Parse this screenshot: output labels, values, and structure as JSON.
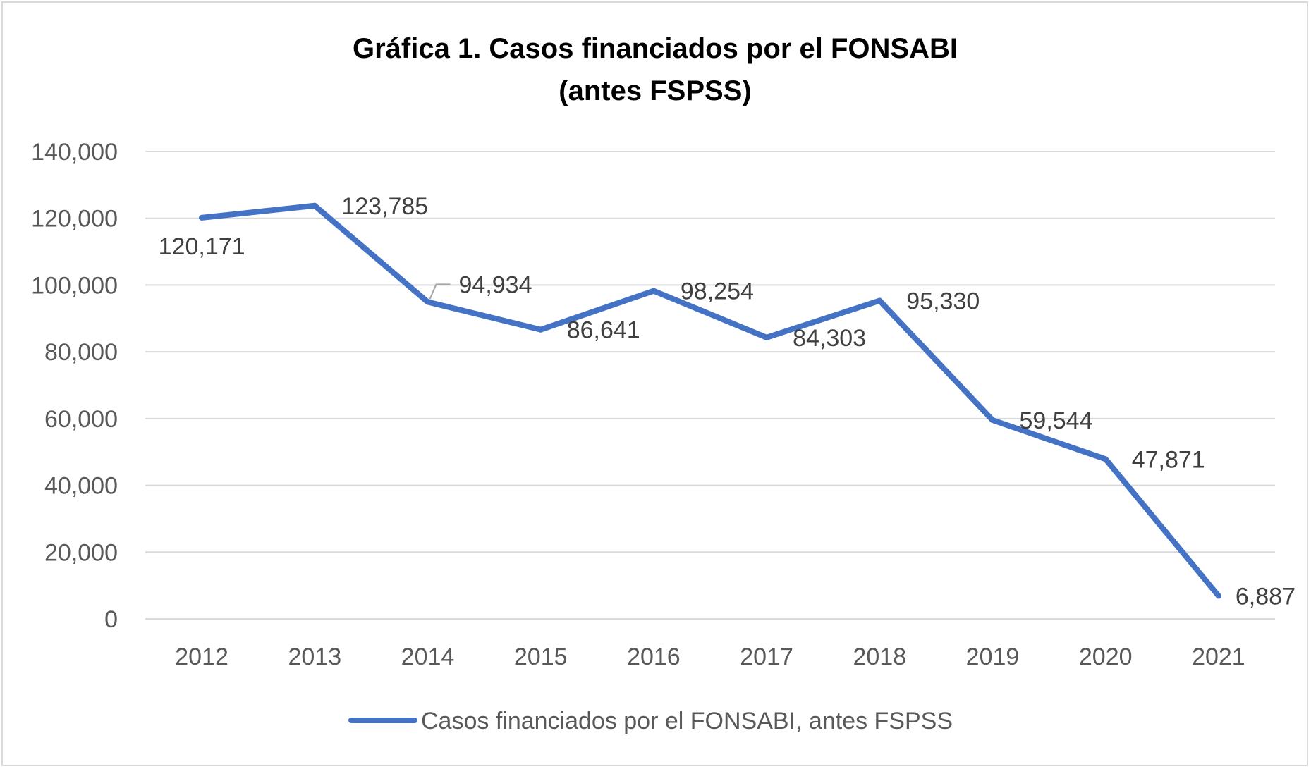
{
  "chart_data": {
    "type": "line",
    "title_lines": [
      "Gráfica 1. Casos financiados por el FONSABI",
      "(antes FSPSS)"
    ],
    "categories": [
      "2012",
      "2013",
      "2014",
      "2015",
      "2016",
      "2017",
      "2018",
      "2019",
      "2020",
      "2021"
    ],
    "series": [
      {
        "name": "Casos financiados por el FONSABI, antes FSPSS",
        "values": [
          120171,
          123785,
          94934,
          86641,
          98254,
          84303,
          95330,
          59544,
          47871,
          6887
        ],
        "labels": [
          "120,171",
          "123,785",
          "94,934",
          "86,641",
          "98,254",
          "84,303",
          "95,330",
          "59,544",
          "47,871",
          "6,887"
        ],
        "color": "#4472C4"
      }
    ],
    "ylim": [
      0,
      140000
    ],
    "yticks": [
      0,
      20000,
      40000,
      60000,
      80000,
      100000,
      120000,
      140000
    ],
    "ytick_labels": [
      "0",
      "20,000",
      "40,000",
      "60,000",
      "80,000",
      "100,000",
      "120,000",
      "140,000"
    ],
    "grid": true,
    "legend_position": "bottom",
    "xlabel": "",
    "ylabel": ""
  }
}
